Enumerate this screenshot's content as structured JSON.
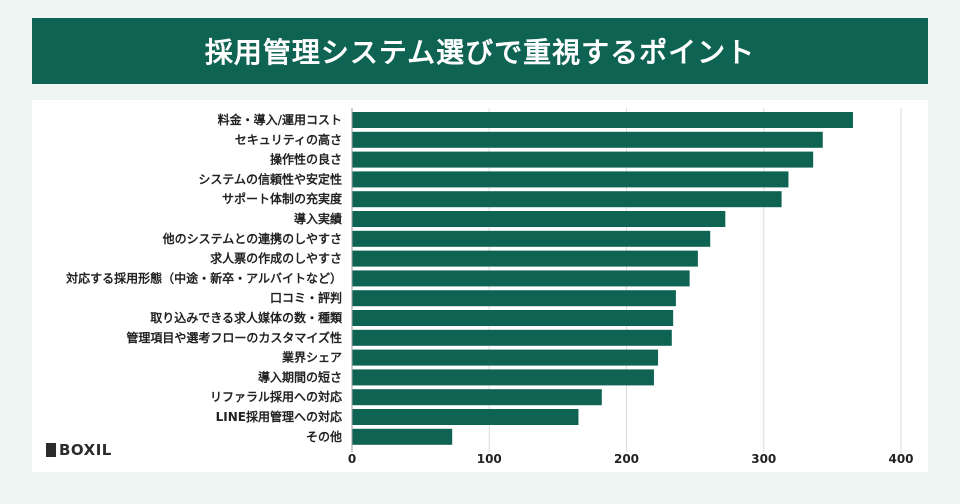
{
  "title": "採用管理システム選びで重視するポイント",
  "brand": {
    "logo_text": "BOXIL"
  },
  "colors": {
    "bar": "#0f6353",
    "banner": "#0f6353",
    "background": "#eef6f4",
    "grid": "#d9dedd"
  },
  "chart_data": {
    "type": "bar",
    "orientation": "horizontal",
    "title": "採用管理システム選びで重視するポイント",
    "xlabel": "",
    "ylabel": "",
    "xlim": [
      0,
      400
    ],
    "xticks": [
      0,
      100,
      200,
      300,
      400
    ],
    "grid": true,
    "categories": [
      "料金・導入/運用コスト",
      "セキュリティの高さ",
      "操作性の良さ",
      "システムの信頼性や安定性",
      "サポート体制の充実度",
      "導入実績",
      "他のシステムとの連携のしやすさ",
      "求人票の作成のしやすさ",
      "対応する採用形態（中途・新卒・アルバイトなど）",
      "口コミ・評判",
      "取り込みできる求人媒体の数・種類",
      "管理項目や選考フローのカスタマイズ性",
      "業界シェア",
      "導入期間の短さ",
      "リファラル採用への対応",
      "LINE採用管理への対応",
      "その他"
    ],
    "values": [
      365,
      343,
      336,
      318,
      313,
      272,
      261,
      252,
      246,
      236,
      234,
      233,
      223,
      220,
      182,
      165,
      73
    ]
  }
}
